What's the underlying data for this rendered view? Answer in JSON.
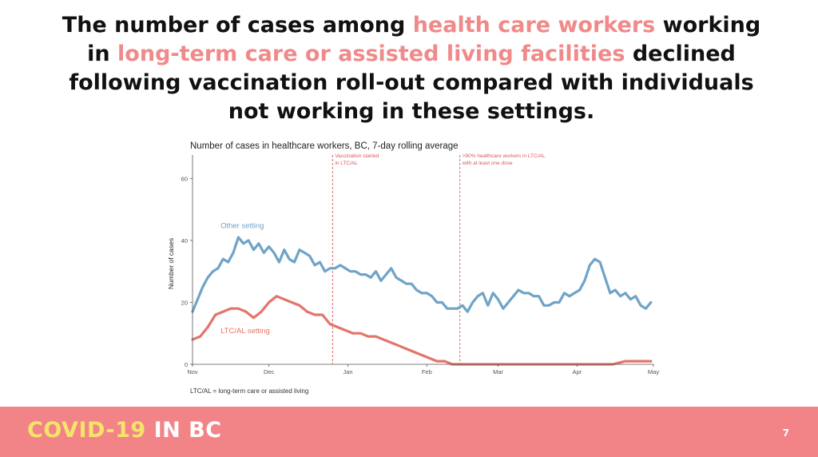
{
  "slide": {
    "title_parts": [
      {
        "text": "The number of cases among ",
        "highlight": false
      },
      {
        "text": "health care workers",
        "highlight": true
      },
      {
        "text": " working in ",
        "highlight": false
      },
      {
        "text": "long-term care or assisted living facilities",
        "highlight": true
      },
      {
        "text": " declined following vaccination roll-out compared with individuals not working in these settings.",
        "highlight": false
      }
    ],
    "highlight_color": "#f08a8a",
    "footer": {
      "brand_part1": "COVID-19",
      "brand_part2": "IN BC",
      "page_number": "7",
      "background_color": "#f28488",
      "brand_color_1": "#f6e46a",
      "brand_color_2": "#ffffff"
    }
  },
  "chart_data": {
    "type": "line",
    "title": "Number of cases in healthcare workers, BC, 7-day rolling average",
    "ylabel": "Number of cases",
    "xlabel": "",
    "ylim": [
      0,
      65
    ],
    "xlim": [
      "2020-11-01",
      "2021-05-01"
    ],
    "yticks": [
      0,
      20,
      40,
      60
    ],
    "xticks": [
      {
        "date": "2020-11-01",
        "label": "Nov"
      },
      {
        "date": "2020-12-01",
        "label": "Dec"
      },
      {
        "date": "2021-01-01",
        "label": "Jan"
      },
      {
        "date": "2021-02-01",
        "label": "Feb"
      },
      {
        "date": "2021-03-01",
        "label": "Mar"
      },
      {
        "date": "2021-04-01",
        "label": "Apr"
      },
      {
        "date": "2021-05-01",
        "label": "May"
      }
    ],
    "grid": false,
    "note": "LTC/AL = long-term care or assisted living",
    "series": [
      {
        "name": "Other setting",
        "color": "#6fa3c7",
        "label_date": "2020-11-12",
        "label_value": 44,
        "points": [
          [
            "2020-11-01",
            17
          ],
          [
            "2020-11-03",
            21
          ],
          [
            "2020-11-05",
            25
          ],
          [
            "2020-11-07",
            28
          ],
          [
            "2020-11-09",
            30
          ],
          [
            "2020-11-11",
            31
          ],
          [
            "2020-11-13",
            34
          ],
          [
            "2020-11-15",
            33
          ],
          [
            "2020-11-17",
            36
          ],
          [
            "2020-11-19",
            41
          ],
          [
            "2020-11-21",
            39
          ],
          [
            "2020-11-23",
            40
          ],
          [
            "2020-11-25",
            37
          ],
          [
            "2020-11-27",
            39
          ],
          [
            "2020-11-29",
            36
          ],
          [
            "2020-12-01",
            38
          ],
          [
            "2020-12-03",
            36
          ],
          [
            "2020-12-05",
            33
          ],
          [
            "2020-12-07",
            37
          ],
          [
            "2020-12-09",
            34
          ],
          [
            "2020-12-11",
            33
          ],
          [
            "2020-12-13",
            37
          ],
          [
            "2020-12-15",
            36
          ],
          [
            "2020-12-17",
            35
          ],
          [
            "2020-12-19",
            32
          ],
          [
            "2020-12-21",
            33
          ],
          [
            "2020-12-23",
            30
          ],
          [
            "2020-12-25",
            31
          ],
          [
            "2020-12-27",
            31
          ],
          [
            "2020-12-29",
            32
          ],
          [
            "2020-12-31",
            31
          ],
          [
            "2021-01-02",
            30
          ],
          [
            "2021-01-04",
            30
          ],
          [
            "2021-01-06",
            29
          ],
          [
            "2021-01-08",
            29
          ],
          [
            "2021-01-10",
            28
          ],
          [
            "2021-01-12",
            30
          ],
          [
            "2021-01-14",
            27
          ],
          [
            "2021-01-16",
            29
          ],
          [
            "2021-01-18",
            31
          ],
          [
            "2021-01-20",
            28
          ],
          [
            "2021-01-22",
            27
          ],
          [
            "2021-01-24",
            26
          ],
          [
            "2021-01-26",
            26
          ],
          [
            "2021-01-28",
            24
          ],
          [
            "2021-01-30",
            23
          ],
          [
            "2021-02-01",
            23
          ],
          [
            "2021-02-03",
            22
          ],
          [
            "2021-02-05",
            20
          ],
          [
            "2021-02-07",
            20
          ],
          [
            "2021-02-09",
            18
          ],
          [
            "2021-02-11",
            18
          ],
          [
            "2021-02-13",
            18
          ],
          [
            "2021-02-15",
            19
          ],
          [
            "2021-02-17",
            17
          ],
          [
            "2021-02-19",
            20
          ],
          [
            "2021-02-21",
            22
          ],
          [
            "2021-02-23",
            23
          ],
          [
            "2021-02-25",
            19
          ],
          [
            "2021-02-27",
            23
          ],
          [
            "2021-03-01",
            21
          ],
          [
            "2021-03-03",
            18
          ],
          [
            "2021-03-05",
            20
          ],
          [
            "2021-03-07",
            22
          ],
          [
            "2021-03-09",
            24
          ],
          [
            "2021-03-11",
            23
          ],
          [
            "2021-03-13",
            23
          ],
          [
            "2021-03-15",
            22
          ],
          [
            "2021-03-17",
            22
          ],
          [
            "2021-03-19",
            19
          ],
          [
            "2021-03-21",
            19
          ],
          [
            "2021-03-23",
            20
          ],
          [
            "2021-03-25",
            20
          ],
          [
            "2021-03-27",
            23
          ],
          [
            "2021-03-29",
            22
          ],
          [
            "2021-03-31",
            23
          ],
          [
            "2021-04-02",
            24
          ],
          [
            "2021-04-04",
            27
          ],
          [
            "2021-04-06",
            32
          ],
          [
            "2021-04-08",
            34
          ],
          [
            "2021-04-10",
            33
          ],
          [
            "2021-04-12",
            28
          ],
          [
            "2021-04-14",
            23
          ],
          [
            "2021-04-16",
            24
          ],
          [
            "2021-04-18",
            22
          ],
          [
            "2021-04-20",
            23
          ],
          [
            "2021-04-22",
            21
          ],
          [
            "2021-04-24",
            22
          ],
          [
            "2021-04-26",
            19
          ],
          [
            "2021-04-28",
            18
          ],
          [
            "2021-04-30",
            20
          ]
        ]
      },
      {
        "name": "LTC/AL setting",
        "color": "#e2756a",
        "label_date": "2020-11-12",
        "label_value": 10,
        "points": [
          [
            "2020-11-01",
            8
          ],
          [
            "2020-11-04",
            9
          ],
          [
            "2020-11-07",
            12
          ],
          [
            "2020-11-10",
            16
          ],
          [
            "2020-11-13",
            17
          ],
          [
            "2020-11-16",
            18
          ],
          [
            "2020-11-19",
            18
          ],
          [
            "2020-11-22",
            17
          ],
          [
            "2020-11-25",
            15
          ],
          [
            "2020-11-28",
            17
          ],
          [
            "2020-12-01",
            20
          ],
          [
            "2020-12-04",
            22
          ],
          [
            "2020-12-07",
            21
          ],
          [
            "2020-12-10",
            20
          ],
          [
            "2020-12-13",
            19
          ],
          [
            "2020-12-16",
            17
          ],
          [
            "2020-12-19",
            16
          ],
          [
            "2020-12-22",
            16
          ],
          [
            "2020-12-25",
            13
          ],
          [
            "2020-12-28",
            12
          ],
          [
            "2020-12-31",
            11
          ],
          [
            "2021-01-03",
            10
          ],
          [
            "2021-01-06",
            10
          ],
          [
            "2021-01-09",
            9
          ],
          [
            "2021-01-12",
            9
          ],
          [
            "2021-01-15",
            8
          ],
          [
            "2021-01-18",
            7
          ],
          [
            "2021-01-21",
            6
          ],
          [
            "2021-01-24",
            5
          ],
          [
            "2021-01-27",
            4
          ],
          [
            "2021-01-30",
            3
          ],
          [
            "2021-02-02",
            2
          ],
          [
            "2021-02-05",
            1
          ],
          [
            "2021-02-08",
            1
          ],
          [
            "2021-02-11",
            0
          ],
          [
            "2021-02-14",
            0
          ],
          [
            "2021-03-01",
            0
          ],
          [
            "2021-03-15",
            0
          ],
          [
            "2021-04-01",
            0
          ],
          [
            "2021-04-15",
            0
          ],
          [
            "2021-04-20",
            1
          ],
          [
            "2021-04-25",
            1
          ],
          [
            "2021-04-30",
            1
          ]
        ]
      }
    ],
    "annotations": [
      {
        "date": "2020-12-26",
        "lines": [
          "Vaccination started",
          "in LTC/AL"
        ],
        "color": "#d65a5a"
      },
      {
        "date": "2021-02-14",
        "lines": [
          ">90% healthcare workers in LTC/AL",
          "with at least one dose"
        ],
        "color": "#d65a5a"
      }
    ]
  }
}
